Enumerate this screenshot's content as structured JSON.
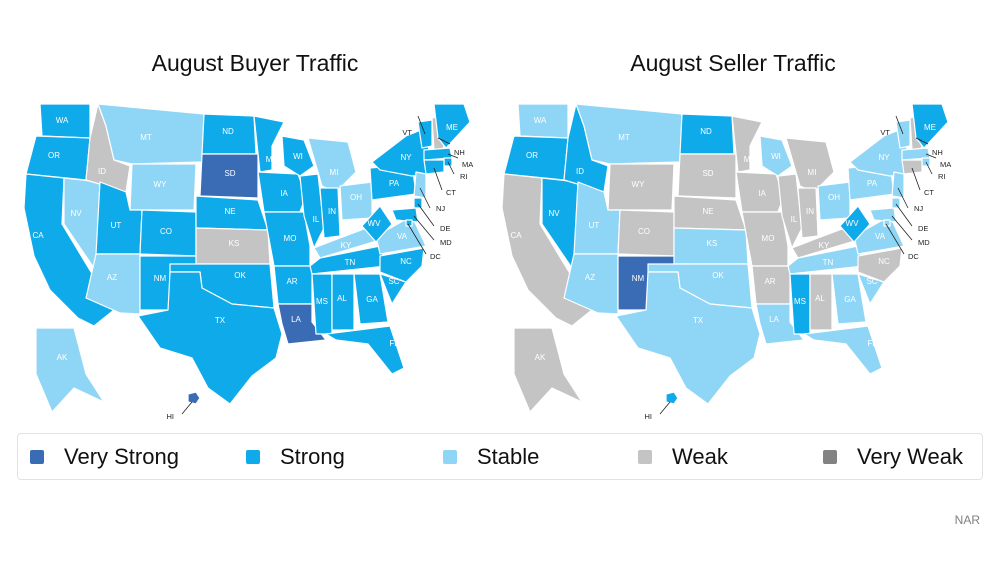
{
  "colors": {
    "very_strong": "#3a6cb5",
    "strong": "#0faaea",
    "stable": "#8fd6f6",
    "weak": "#c4c4c4",
    "very_weak": "#828282",
    "label": "#ffffff",
    "border": "#ffffff",
    "leader": "#222222"
  },
  "maps": [
    {
      "id": "buyer",
      "title": "August Buyer Traffic",
      "states": [
        {
          "abbr": "WA",
          "level": "strong"
        },
        {
          "abbr": "OR",
          "level": "strong"
        },
        {
          "abbr": "CA",
          "level": "strong"
        },
        {
          "abbr": "NV",
          "level": "stable"
        },
        {
          "abbr": "ID",
          "level": "weak"
        },
        {
          "abbr": "MT",
          "level": "stable"
        },
        {
          "abbr": "WY",
          "level": "stable"
        },
        {
          "abbr": "UT",
          "level": "strong"
        },
        {
          "abbr": "AZ",
          "level": "stable"
        },
        {
          "abbr": "CO",
          "level": "strong"
        },
        {
          "abbr": "NM",
          "level": "strong"
        },
        {
          "abbr": "ND",
          "level": "strong"
        },
        {
          "abbr": "SD",
          "level": "very_strong"
        },
        {
          "abbr": "NE",
          "level": "strong"
        },
        {
          "abbr": "KS",
          "level": "weak"
        },
        {
          "abbr": "OK",
          "level": "strong"
        },
        {
          "abbr": "TX",
          "level": "strong"
        },
        {
          "abbr": "MN",
          "level": "strong"
        },
        {
          "abbr": "IA",
          "level": "strong"
        },
        {
          "abbr": "MO",
          "level": "strong"
        },
        {
          "abbr": "AR",
          "level": "strong"
        },
        {
          "abbr": "LA",
          "level": "very_strong"
        },
        {
          "abbr": "WI",
          "level": "strong"
        },
        {
          "abbr": "IL",
          "level": "strong"
        },
        {
          "abbr": "MI",
          "level": "stable"
        },
        {
          "abbr": "IN",
          "level": "strong"
        },
        {
          "abbr": "OH",
          "level": "stable"
        },
        {
          "abbr": "KY",
          "level": "stable"
        },
        {
          "abbr": "TN",
          "level": "strong"
        },
        {
          "abbr": "MS",
          "level": "strong"
        },
        {
          "abbr": "AL",
          "level": "strong"
        },
        {
          "abbr": "GA",
          "level": "strong"
        },
        {
          "abbr": "FL",
          "level": "strong"
        },
        {
          "abbr": "SC",
          "level": "strong"
        },
        {
          "abbr": "NC",
          "level": "strong"
        },
        {
          "abbr": "VA",
          "level": "stable"
        },
        {
          "abbr": "WV",
          "level": "strong"
        },
        {
          "abbr": "PA",
          "level": "strong"
        },
        {
          "abbr": "NY",
          "level": "strong"
        },
        {
          "abbr": "VT",
          "level": "strong"
        },
        {
          "abbr": "NH",
          "level": "weak"
        },
        {
          "abbr": "ME",
          "level": "strong"
        },
        {
          "abbr": "MA",
          "level": "strong"
        },
        {
          "abbr": "RI",
          "level": "strong"
        },
        {
          "abbr": "CT",
          "level": "strong"
        },
        {
          "abbr": "NJ",
          "level": "stable"
        },
        {
          "abbr": "DE",
          "level": "strong"
        },
        {
          "abbr": "MD",
          "level": "strong"
        },
        {
          "abbr": "DC",
          "level": "strong"
        },
        {
          "abbr": "AK",
          "level": "stable"
        },
        {
          "abbr": "HI",
          "level": "very_strong"
        }
      ]
    },
    {
      "id": "seller",
      "title": "August Seller Traffic",
      "states": [
        {
          "abbr": "WA",
          "level": "stable"
        },
        {
          "abbr": "OR",
          "level": "strong"
        },
        {
          "abbr": "CA",
          "level": "weak"
        },
        {
          "abbr": "NV",
          "level": "strong"
        },
        {
          "abbr": "ID",
          "level": "strong"
        },
        {
          "abbr": "MT",
          "level": "stable"
        },
        {
          "abbr": "WY",
          "level": "weak"
        },
        {
          "abbr": "UT",
          "level": "stable"
        },
        {
          "abbr": "AZ",
          "level": "stable"
        },
        {
          "abbr": "CO",
          "level": "weak"
        },
        {
          "abbr": "NM",
          "level": "very_strong"
        },
        {
          "abbr": "ND",
          "level": "strong"
        },
        {
          "abbr": "SD",
          "level": "weak"
        },
        {
          "abbr": "NE",
          "level": "weak"
        },
        {
          "abbr": "KS",
          "level": "stable"
        },
        {
          "abbr": "OK",
          "level": "stable"
        },
        {
          "abbr": "TX",
          "level": "stable"
        },
        {
          "abbr": "MN",
          "level": "weak"
        },
        {
          "abbr": "IA",
          "level": "weak"
        },
        {
          "abbr": "MO",
          "level": "weak"
        },
        {
          "abbr": "AR",
          "level": "weak"
        },
        {
          "abbr": "LA",
          "level": "stable"
        },
        {
          "abbr": "WI",
          "level": "stable"
        },
        {
          "abbr": "IL",
          "level": "weak"
        },
        {
          "abbr": "MI",
          "level": "weak"
        },
        {
          "abbr": "IN",
          "level": "weak"
        },
        {
          "abbr": "OH",
          "level": "stable"
        },
        {
          "abbr": "KY",
          "level": "weak"
        },
        {
          "abbr": "TN",
          "level": "stable"
        },
        {
          "abbr": "MS",
          "level": "strong"
        },
        {
          "abbr": "AL",
          "level": "weak"
        },
        {
          "abbr": "GA",
          "level": "stable"
        },
        {
          "abbr": "FL",
          "level": "stable"
        },
        {
          "abbr": "SC",
          "level": "stable"
        },
        {
          "abbr": "NC",
          "level": "weak"
        },
        {
          "abbr": "VA",
          "level": "stable"
        },
        {
          "abbr": "WV",
          "level": "strong"
        },
        {
          "abbr": "PA",
          "level": "stable"
        },
        {
          "abbr": "NY",
          "level": "stable"
        },
        {
          "abbr": "VT",
          "level": "stable"
        },
        {
          "abbr": "NH",
          "level": "weak"
        },
        {
          "abbr": "ME",
          "level": "strong"
        },
        {
          "abbr": "MA",
          "level": "stable"
        },
        {
          "abbr": "RI",
          "level": "stable"
        },
        {
          "abbr": "CT",
          "level": "weak"
        },
        {
          "abbr": "NJ",
          "level": "stable"
        },
        {
          "abbr": "DE",
          "level": "stable"
        },
        {
          "abbr": "MD",
          "level": "stable"
        },
        {
          "abbr": "DC",
          "level": "stable"
        },
        {
          "abbr": "AK",
          "level": "weak"
        },
        {
          "abbr": "HI",
          "level": "strong"
        }
      ]
    }
  ],
  "legend": [
    {
      "level": "very_strong",
      "label": "Very Strong"
    },
    {
      "level": "strong",
      "label": "Strong"
    },
    {
      "level": "stable",
      "label": "Stable"
    },
    {
      "level": "weak",
      "label": "Weak"
    },
    {
      "level": "very_weak",
      "label": "Very Weak"
    }
  ],
  "source": "NAR"
}
